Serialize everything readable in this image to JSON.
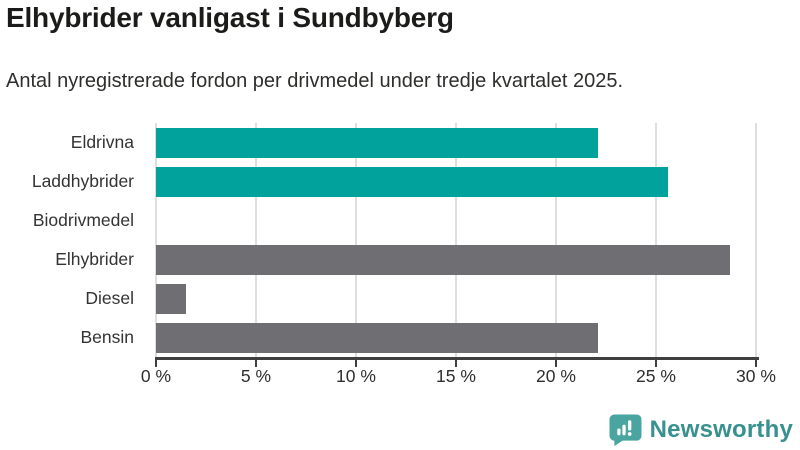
{
  "header": {
    "title": "Elhybrider vanligast i Sundbyberg",
    "subtitle": "Antal nyregistrerade fordon per drivmedel under tredje kvartalet 2025."
  },
  "chart_data": {
    "type": "bar",
    "orientation": "horizontal",
    "title": "Elhybrider vanligast i Sundbyberg",
    "subtitle": "Antal nyregistrerade fordon per drivmedel under tredje kvartalet 2025.",
    "categories": [
      "Eldrivna",
      "Laddhybrider",
      "Biodrivmedel",
      "Elhybrider",
      "Diesel",
      "Bensin"
    ],
    "values": [
      22.1,
      25.6,
      0,
      28.7,
      1.5,
      22.1
    ],
    "unit": "%",
    "bar_colors": [
      "#00a29b",
      "#00a29b",
      "#6e6e73",
      "#6e6e73",
      "#6e6e73",
      "#6e6e73"
    ],
    "xlim": [
      0,
      30
    ],
    "x_tick_values": [
      0,
      5,
      10,
      15,
      20,
      25,
      30
    ],
    "x_tick_labels": [
      "0 %",
      "5 %",
      "10 %",
      "15 %",
      "20 %",
      "25 %",
      "30 %"
    ],
    "grid": "vertical",
    "legend": "none"
  },
  "colors": {
    "accent_teal": "#00a29b",
    "neutral_gray": "#6e6e73",
    "gridline": "#dedede",
    "axis": "#3f3f3f",
    "logo_teal": "#38918f"
  },
  "footer": {
    "brand": "Newsworthy"
  }
}
